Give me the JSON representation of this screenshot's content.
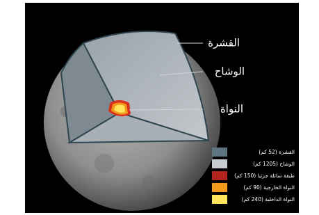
{
  "labels": {
    "crust": "القشرة",
    "mantle": "الوشاح",
    "core": "النواة"
  },
  "legend": [
    {
      "label": "القشرة (52 كم)"
    },
    {
      "label": "الوشاح (1205 كم)"
    },
    {
      "label": "طبقة سائلة جزئيا (150 كم)"
    },
    {
      "label": "النواة الخارجية (90 كم)"
    },
    {
      "label": "النواة الداخلية (240 كم)"
    }
  ]
}
